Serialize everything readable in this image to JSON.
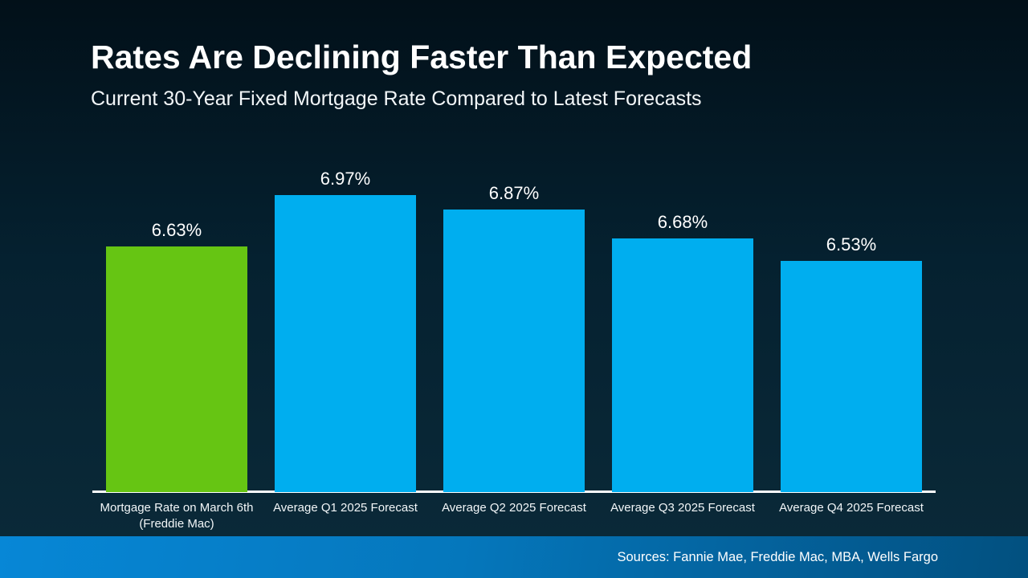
{
  "slide": {
    "title": "Rates Are Declining Faster Than Expected",
    "subtitle": "Current 30-Year Fixed Mortgage Rate Compared to Latest Forecasts",
    "sources": "Sources: Fannie Mae, Freddie Mac, MBA, Wells Fargo"
  },
  "colors": {
    "highlight_bar": "#66C513",
    "forecast_bar": "#00AEEF",
    "axis": "#FFFFFF",
    "text": "#FFFFFF",
    "background_top": "#021019",
    "background_bottom": "#0B2A3A",
    "footer_left": "#0787D6",
    "footer_right": "#02507F"
  },
  "chart_data": {
    "type": "bar",
    "title": "Current 30-Year Fixed Mortgage Rate Compared to Latest Forecasts",
    "categories": [
      "Mortgage Rate on March 6th (Freddie Mac)",
      "Average Q1 2025 Forecast",
      "Average Q2 2025 Forecast",
      "Average Q3 2025 Forecast",
      "Average Q4 2025 Forecast"
    ],
    "values": [
      6.63,
      6.97,
      6.87,
      6.68,
      6.53
    ],
    "data_labels": [
      "6.63%",
      "6.97%",
      "6.87%",
      "6.68%",
      "6.53%"
    ],
    "bar_colors": [
      "#66C513",
      "#00AEEF",
      "#00AEEF",
      "#00AEEF",
      "#00AEEF"
    ],
    "xlabel": "",
    "ylabel": "",
    "ylim": [
      5.0,
      7.0
    ],
    "grid": false,
    "legend": false
  }
}
